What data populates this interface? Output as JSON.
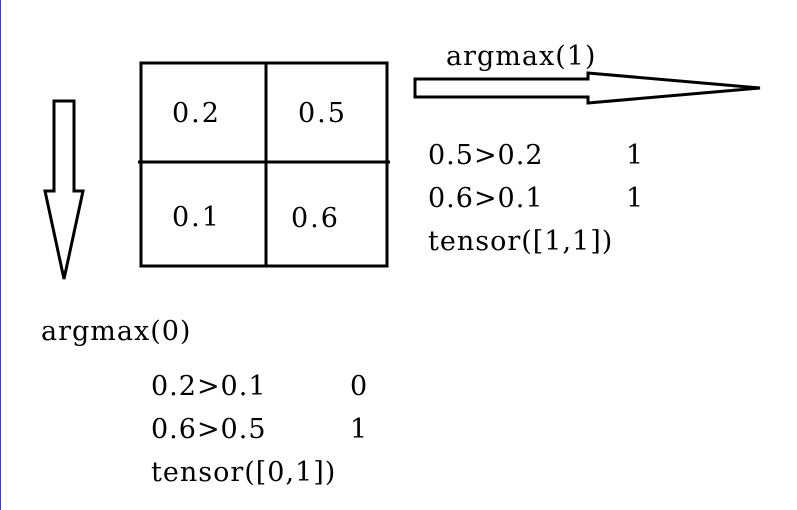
{
  "grid": {
    "cells": [
      [
        "0.2",
        "0.5"
      ],
      [
        "0.1",
        "0.6"
      ]
    ]
  },
  "right": {
    "label": "argmax(1)",
    "lines": [
      {
        "expr": "0.5>0.2",
        "result": "1"
      },
      {
        "expr": "0.6>0.1",
        "result": "1"
      }
    ],
    "tensor": "tensor([1,1])"
  },
  "down": {
    "label": "argmax(0)",
    "lines": [
      {
        "expr": "0.2>0.1",
        "result": "0"
      },
      {
        "expr": "0.6>0.5",
        "result": "1"
      }
    ],
    "tensor": "tensor([0,1])"
  }
}
